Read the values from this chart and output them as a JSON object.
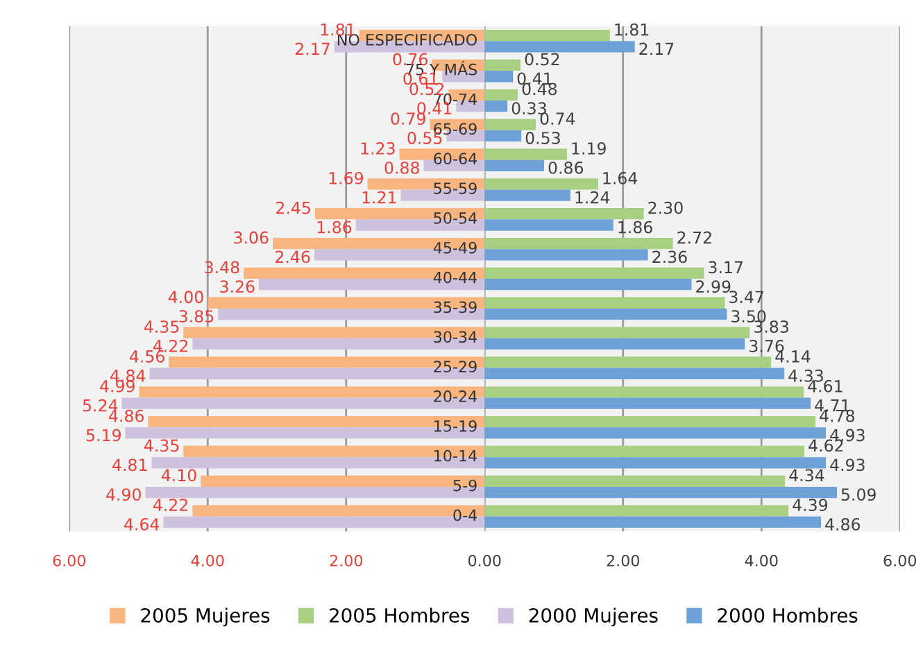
{
  "chart_data": [
    {
      "type": "bar",
      "orientation": "horizontal",
      "categories": [
        "NO ESPECIFICADO",
        "75 Y MÁS",
        "70-74",
        "65-69",
        "60-64",
        "55-59",
        "50-54",
        "45-49",
        "40-44",
        "35-39",
        "30-34",
        "25-29",
        "20-24",
        "15-19",
        "10-14",
        "5-9",
        "0-4"
      ],
      "series": [
        {
          "name": "2005 Mujeres",
          "color": "#f9b57f",
          "values": [
            1.81,
            0.76,
            0.52,
            0.79,
            1.23,
            1.69,
            2.45,
            3.06,
            3.48,
            4.0,
            4.35,
            4.56,
            4.99,
            4.86,
            4.35,
            4.1,
            4.22
          ],
          "value_labels": [
            "1.81",
            "0.76",
            "0.52",
            "0.79",
            "1.23",
            "1.69",
            "2.45",
            "3.06",
            "3.48",
            "4.00",
            "4.35",
            "4.56",
            "4.99",
            "4.86",
            "4.35",
            "4.10",
            "4.22"
          ]
        },
        {
          "name": "2000 Mujeres",
          "color": "#cdc1dd",
          "values": [
            2.17,
            0.61,
            0.41,
            0.55,
            0.88,
            1.21,
            1.86,
            2.46,
            3.26,
            3.85,
            4.22,
            4.84,
            5.24,
            5.19,
            4.81,
            4.9,
            4.64
          ],
          "value_labels": [
            "2.17",
            "0.61",
            "0.41",
            "0.55",
            "0.88",
            "1.21",
            "1.86",
            "2.46",
            "3.26",
            "3.85",
            "4.22",
            "4.84",
            "5.24",
            "5.19",
            "4.81",
            "4.90",
            "4.64"
          ]
        }
      ],
      "xlim": [
        6,
        0
      ],
      "xticks": [
        {
          "value": 6,
          "label": "6.00"
        },
        {
          "value": 4,
          "label": "4.00"
        },
        {
          "value": 2,
          "label": "2.00"
        }
      ],
      "grid": "x",
      "legend": "bottom"
    },
    {
      "type": "bar",
      "orientation": "horizontal",
      "categories": [
        null,
        null,
        null,
        null,
        null,
        null,
        null,
        null,
        null,
        null,
        null,
        null,
        null,
        null,
        null,
        null,
        null
      ],
      "series": [
        {
          "name": "2005 Hombres",
          "color": "#a9cf82",
          "values": [
            1.81,
            0.52,
            0.48,
            0.74,
            1.19,
            1.64,
            2.3,
            2.72,
            3.17,
            3.47,
            3.83,
            4.14,
            4.61,
            4.78,
            4.62,
            4.34,
            4.39
          ],
          "value_labels": [
            "1.81",
            "0.52",
            "0.48",
            "0.74",
            "1.19",
            "1.64",
            "2.30",
            "2.72",
            "3.17",
            "3.47",
            "3.83",
            "4.14",
            "4.61",
            "4.78",
            "4.62",
            "4.34",
            "4.39"
          ]
        },
        {
          "name": "2000 Hombres",
          "color": "#6fa1d9",
          "values": [
            2.17,
            0.41,
            0.33,
            0.53,
            0.86,
            1.24,
            1.86,
            2.36,
            2.99,
            3.5,
            3.76,
            4.33,
            4.71,
            4.93,
            4.93,
            5.09,
            4.86
          ],
          "value_labels": [
            "2.17",
            "0.41",
            "0.33",
            "0.53",
            "0.86",
            "1.24",
            "1.86",
            "2.36",
            "2.99",
            "3.50",
            "3.76",
            "4.33",
            "4.71",
            "4.93",
            "4.93",
            "5.09",
            "4.86"
          ]
        }
      ],
      "xlim": [
        0,
        6
      ],
      "xticks": [
        {
          "value": 0,
          "label": "0.00"
        },
        {
          "value": 2,
          "label": "2.00"
        },
        {
          "value": 4,
          "label": "4.00"
        },
        {
          "value": 6,
          "label": "6.00"
        }
      ],
      "grid": "x",
      "legend": "bottom"
    }
  ]
}
